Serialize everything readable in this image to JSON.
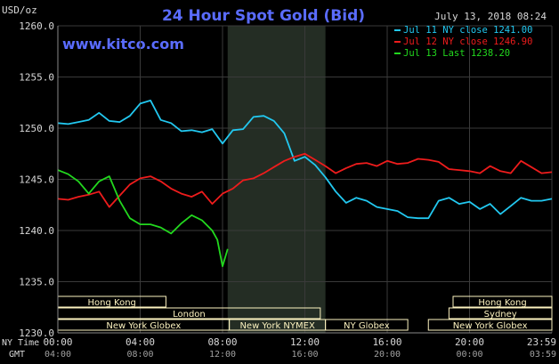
{
  "chart_data": {
    "type": "line",
    "title": "24 Hour Spot Gold (Bid)",
    "site": "www.kitco.com",
    "date_stamp": "July 13, 2018 08:24",
    "y_unit": "USD/oz",
    "ylim": [
      1230,
      1260
    ],
    "y_ticks": [
      1230.0,
      1235.0,
      1240.0,
      1245.0,
      1250.0,
      1255.0,
      1260.0
    ],
    "y_tick_labels": [
      "1230.0",
      "1235.0",
      "1240.0",
      "1245.0",
      "1250.0",
      "1255.0",
      "1260.0"
    ],
    "xlim": [
      0,
      24
    ],
    "x_ticks": [
      0,
      4,
      8,
      12,
      16,
      20,
      24
    ],
    "x_tick_labels_ny": [
      "00:00",
      "04:00",
      "08:00",
      "12:00",
      "16:00",
      "20:00",
      "23:59"
    ],
    "x_tick_labels_gmt": [
      "04:00",
      "08:00",
      "12:00",
      "16:00",
      "20:00",
      "00:00",
      "03:59"
    ],
    "x_row_label_ny": "NY Time",
    "x_row_label_gmt": "GMT",
    "grid": true,
    "legend_position": "top-right",
    "highlight_range": [
      8.25,
      13.0
    ],
    "series": [
      {
        "name": "Jul 11 NY close 1241.00",
        "color": "#22c8f0",
        "x": [
          0,
          0.5,
          1,
          1.5,
          2,
          2.5,
          3,
          3.5,
          4,
          4.5,
          5,
          5.5,
          6,
          6.5,
          7,
          7.5,
          8,
          8.5,
          9,
          9.5,
          10,
          10.5,
          11,
          11.5,
          12,
          12.5,
          13,
          13.5,
          14,
          14.5,
          15,
          15.5,
          16,
          16.5,
          17,
          17.5,
          18,
          18.5,
          19,
          19.5,
          20,
          20.5,
          21,
          21.5,
          22,
          22.5,
          23,
          23.5,
          24
        ],
        "y": [
          1250.5,
          1250.4,
          1250.6,
          1250.8,
          1251.5,
          1250.7,
          1250.6,
          1251.2,
          1252.4,
          1252.7,
          1250.8,
          1250.5,
          1249.7,
          1249.8,
          1249.6,
          1249.9,
          1248.5,
          1249.8,
          1249.9,
          1251.1,
          1251.2,
          1250.7,
          1249.5,
          1246.8,
          1247.2,
          1246.4,
          1245.2,
          1243.8,
          1242.7,
          1243.2,
          1242.9,
          1242.3,
          1242.1,
          1241.9,
          1241.3,
          1241.2,
          1241.2,
          1242.9,
          1243.2,
          1242.6,
          1242.8,
          1242.1,
          1242.6,
          1241.6,
          1242.4,
          1243.2,
          1242.9,
          1242.9,
          1243.1
        ]
      },
      {
        "name": "Jul 12 NY close 1246.90",
        "color": "#ee1c1c",
        "x": [
          0,
          0.5,
          1,
          1.5,
          2,
          2.5,
          3,
          3.5,
          4,
          4.5,
          5,
          5.5,
          6,
          6.5,
          7,
          7.5,
          8,
          8.5,
          9,
          9.5,
          10,
          10.5,
          11,
          11.5,
          12,
          12.5,
          13,
          13.5,
          14,
          14.5,
          15,
          15.5,
          16,
          16.5,
          17,
          17.5,
          18,
          18.5,
          19,
          19.5,
          20,
          20.5,
          21,
          21.5,
          22,
          22.5,
          23,
          23.5,
          24
        ],
        "y": [
          1243.1,
          1243.0,
          1243.3,
          1243.5,
          1243.8,
          1242.3,
          1243.4,
          1244.5,
          1245.1,
          1245.3,
          1244.8,
          1244.1,
          1243.6,
          1243.3,
          1243.8,
          1242.6,
          1243.6,
          1244.1,
          1244.9,
          1245.1,
          1245.6,
          1246.2,
          1246.8,
          1247.2,
          1247.5,
          1246.9,
          1246.3,
          1245.6,
          1246.1,
          1246.5,
          1246.6,
          1246.3,
          1246.8,
          1246.5,
          1246.6,
          1247.0,
          1246.9,
          1246.7,
          1246.0,
          1245.9,
          1245.8,
          1245.6,
          1246.3,
          1245.8,
          1245.6,
          1246.8,
          1246.2,
          1245.6,
          1245.7
        ]
      },
      {
        "name": "Jul 13 Last 1238.20",
        "color": "#22d81e",
        "x": [
          0,
          0.5,
          1,
          1.5,
          2,
          2.5,
          3,
          3.5,
          4,
          4.5,
          5,
          5.5,
          6,
          6.5,
          7,
          7.5,
          7.75,
          8.0,
          8.25
        ],
        "y": [
          1245.9,
          1245.5,
          1244.8,
          1243.6,
          1244.8,
          1245.3,
          1242.9,
          1241.2,
          1240.6,
          1240.6,
          1240.3,
          1239.7,
          1240.7,
          1241.5,
          1241.0,
          1240.0,
          1239.1,
          1236.5,
          1238.2
        ]
      }
    ],
    "sessions": [
      {
        "label": "Hong Kong",
        "start": 0,
        "end": 5.25,
        "row": 0
      },
      {
        "label": "Hong Kong",
        "start": 19.2,
        "end": 24,
        "row": 0
      },
      {
        "label": "London",
        "start": 0,
        "end": 12.75,
        "row": 1
      },
      {
        "label": "Sydney",
        "start": 19.0,
        "end": 24,
        "row": 1
      },
      {
        "label": "New York Globex",
        "start": 0,
        "end": 8.33,
        "row": 2
      },
      {
        "label": "New York NYMEX",
        "start": 8.33,
        "end": 13.0,
        "row": 2
      },
      {
        "label": "NY Globex",
        "start": 13.0,
        "end": 17.0,
        "row": 2
      },
      {
        "label": "New York Globex",
        "start": 18.0,
        "end": 24,
        "row": 2
      }
    ],
    "colors": {
      "background": "#000000",
      "title": "#5a6cff",
      "grid": "#3a3a3a",
      "axis_text": "#d8d8d8",
      "session_fill": "#fdf3c0",
      "highlight": "#242d24"
    }
  }
}
